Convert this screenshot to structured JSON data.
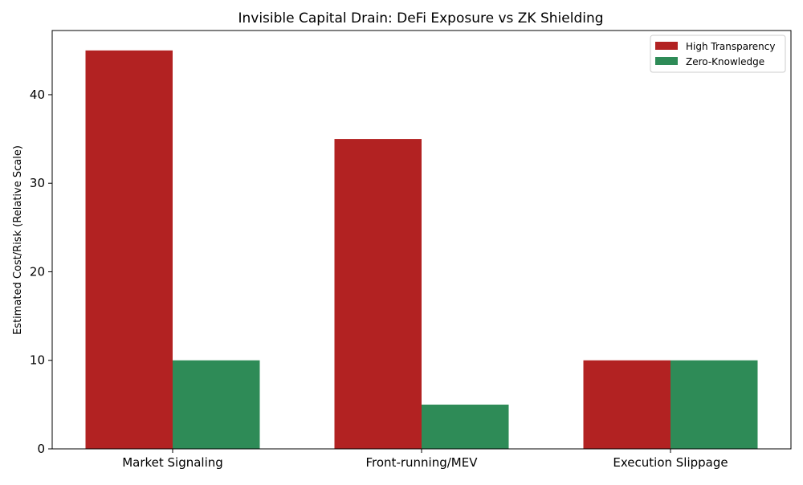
{
  "chart_data": {
    "type": "bar",
    "title": "Invisible Capital Drain: DeFi Exposure vs ZK Shielding",
    "xlabel": "",
    "ylabel": "Estimated Cost/Risk (Relative Scale)",
    "categories": [
      "Market Signaling",
      "Front-running/MEV",
      "Execution Slippage"
    ],
    "series": [
      {
        "name": "High Transparency",
        "values": [
          45,
          35,
          10
        ],
        "color": "#b22222"
      },
      {
        "name": "Zero-Knowledge",
        "values": [
          10,
          5,
          10
        ],
        "color": "#2e8b57"
      }
    ],
    "ylim": [
      0,
      47.25
    ],
    "yticks": [
      0,
      10,
      20,
      30,
      40
    ],
    "legend_position": "top-right",
    "grid": false
  }
}
